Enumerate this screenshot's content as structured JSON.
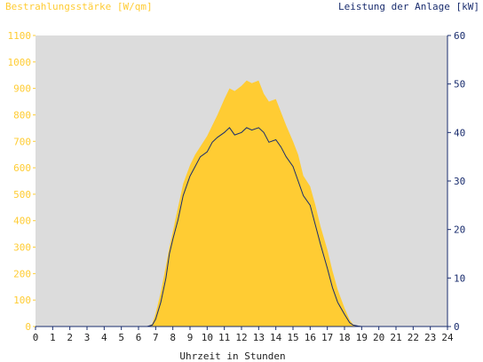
{
  "chart_data": {
    "type": "area",
    "left_axis_label": "Bestrahlungsstärke [W/qm]",
    "right_axis_label": "Leistung der Anlage [kW]",
    "xlabel": "Uhrzeit in Stunden",
    "xlim": [
      0,
      24
    ],
    "x_ticks": [
      "0",
      "1",
      "2",
      "3",
      "4",
      "5",
      "6",
      "7",
      "8",
      "9",
      "10",
      "11",
      "12",
      "13",
      "14",
      "15",
      "16",
      "17",
      "18",
      "19",
      "20",
      "21",
      "22",
      "23",
      "24"
    ],
    "ylim_left": [
      0,
      1100
    ],
    "y_ticks_left": [
      "0",
      "100",
      "200",
      "300",
      "400",
      "500",
      "600",
      "700",
      "800",
      "900",
      "1000",
      "1100"
    ],
    "ylim_right": [
      0,
      60
    ],
    "y_ticks_right": [
      "0",
      "10",
      "20",
      "30",
      "40",
      "50",
      "60"
    ],
    "grid": false,
    "colors": {
      "plot_background": "#dcdcdc",
      "irradiance_fill": "#ffcc33",
      "power_line": "#1a2d6e",
      "left_axis_text": "#ffcc33",
      "right_axis_text": "#1a2d6e",
      "axis": "#1a2d6e"
    },
    "series": [
      {
        "axis": "left",
        "style": "area",
        "x": [
          0,
          6.5,
          6.8,
          7.0,
          7.3,
          7.6,
          7.8,
          8.0,
          8.3,
          8.6,
          9.0,
          9.3,
          9.6,
          10.0,
          10.3,
          10.6,
          11.0,
          11.3,
          11.6,
          12.0,
          12.3,
          12.6,
          13.0,
          13.3,
          13.6,
          14.0,
          14.3,
          14.6,
          15.0,
          15.3,
          15.6,
          16.0,
          16.3,
          16.6,
          17.0,
          17.3,
          17.6,
          18.0,
          18.3,
          18.5,
          18.8,
          19.0,
          24
        ],
        "y": [
          0,
          0,
          10,
          50,
          130,
          230,
          300,
          360,
          450,
          540,
          610,
          650,
          680,
          720,
          760,
          800,
          860,
          900,
          890,
          910,
          930,
          920,
          930,
          880,
          850,
          860,
          810,
          760,
          700,
          650,
          570,
          530,
          460,
          380,
          290,
          210,
          140,
          70,
          25,
          8,
          2,
          0,
          0
        ]
      },
      {
        "axis": "right",
        "style": "line",
        "x": [
          0,
          6.5,
          6.8,
          7.0,
          7.3,
          7.6,
          7.8,
          8.0,
          8.3,
          8.6,
          9.0,
          9.3,
          9.6,
          10.0,
          10.3,
          10.6,
          11.0,
          11.3,
          11.6,
          12.0,
          12.3,
          12.6,
          13.0,
          13.3,
          13.6,
          14.0,
          14.3,
          14.6,
          15.0,
          15.3,
          15.6,
          16.0,
          16.3,
          16.6,
          17.0,
          17.3,
          17.6,
          18.0,
          18.3,
          18.5,
          18.8,
          19.0,
          24
        ],
        "y": [
          0,
          0,
          0.3,
          1.5,
          5,
          10,
          15,
          18,
          22,
          27,
          31,
          33,
          35,
          36,
          38,
          39,
          40,
          41,
          39.5,
          40,
          41,
          40.5,
          41,
          40,
          38,
          38.5,
          37,
          35,
          33,
          30,
          27,
          25,
          21,
          17,
          12,
          8,
          5,
          2.5,
          0.8,
          0.3,
          0.1,
          0,
          0
        ]
      }
    ]
  }
}
